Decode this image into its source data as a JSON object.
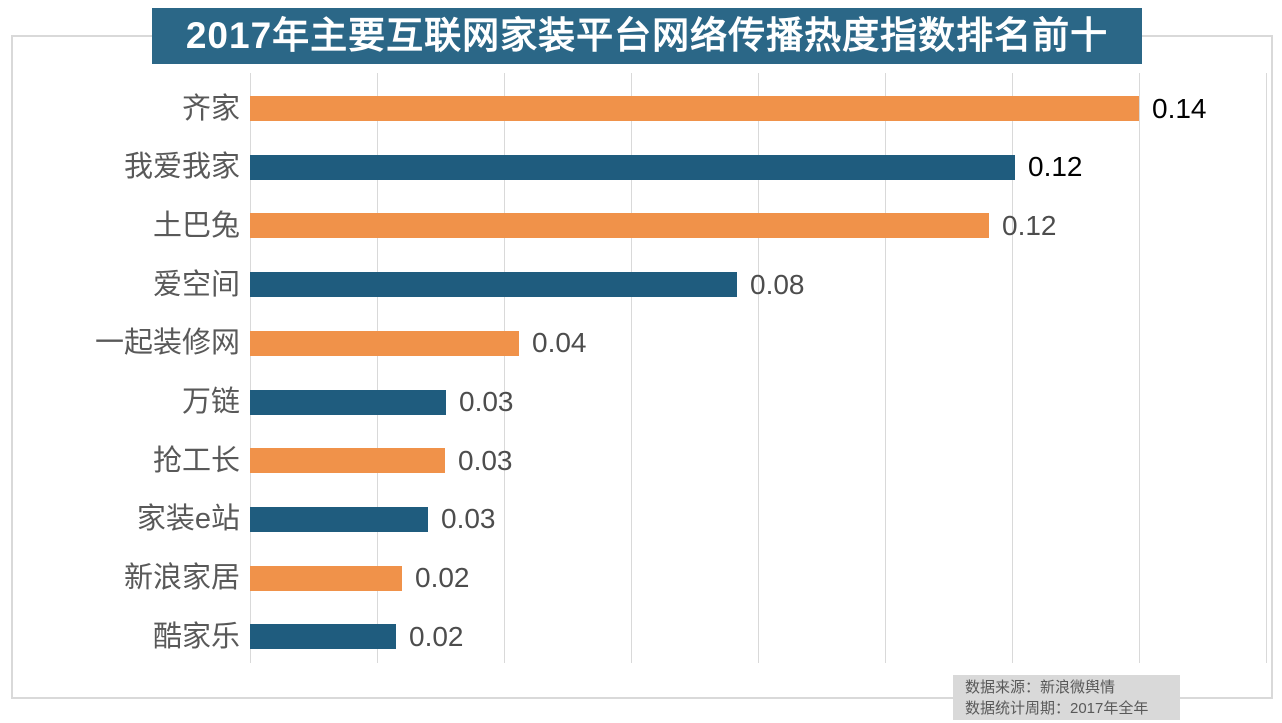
{
  "title": "2017年主要互联网家装平台网络传播热度指数排名前十",
  "source_note": {
    "line1": "数据来源：新浪微舆情",
    "line2": "数据统计周期：2017年全年"
  },
  "colors": {
    "bar_orange": "#F0924A",
    "bar_blue": "#1F5C7E",
    "title_bg": "#2B6787",
    "title_text": "#FFFFFF",
    "gridline": "#D9D9D9",
    "chart_border": "#D9D9D9",
    "category_label": "#595959",
    "value_label_emphasis": "#000000",
    "value_label_normal": "#4D4D4D",
    "note_bg": "#D9D9D9",
    "note_text": "#595959"
  },
  "chart_data": {
    "type": "bar",
    "orientation": "horizontal",
    "title": "2017年主要互联网家装平台网络传播热度指数排名前十",
    "categories": [
      "齐家",
      "我爱我家",
      "土巴兔",
      "爱空间",
      "一起装修网",
      "万链",
      "抢工长",
      "家装e站",
      "新浪家居",
      "酷家乐"
    ],
    "values": [
      0.14,
      0.12,
      0.12,
      0.08,
      0.04,
      0.03,
      0.03,
      0.03,
      0.02,
      0.02
    ],
    "value_labels": [
      "0.14",
      "0.12",
      "0.12",
      "0.08",
      "0.04",
      "0.03",
      "0.03",
      "0.03",
      "0.02",
      "0.02"
    ],
    "estimated_precise_values": [
      0.14,
      0.1204,
      0.1164,
      0.0767,
      0.0424,
      0.0309,
      0.0307,
      0.028,
      0.0239,
      0.023
    ],
    "value_label_colors": [
      "#000000",
      "#000000",
      "#4D4D4D",
      "#4D4D4D",
      "#4D4D4D",
      "#4D4D4D",
      "#4D4D4D",
      "#4D4D4D",
      "#4D4D4D",
      "#4D4D4D"
    ],
    "bar_color_pattern": [
      "#F0924A",
      "#1F5C7E"
    ],
    "xlabel": "",
    "ylabel": "",
    "xlim": [
      0,
      0.16
    ],
    "gridline_interval": 0.02,
    "gridlines_visible": true,
    "axis_tick_labels_visible": false,
    "legend": null,
    "data_source": "新浪微舆情",
    "data_period": "2017年全年"
  }
}
